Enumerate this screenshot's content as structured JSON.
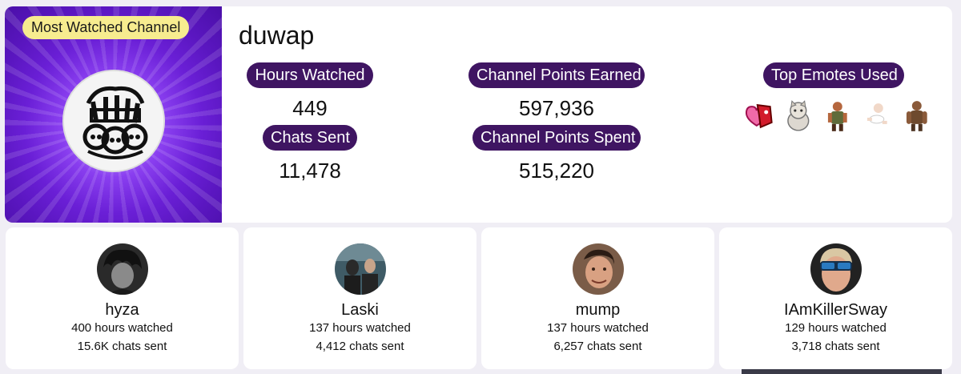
{
  "hero": {
    "badge": "Most Watched Channel",
    "avatar_icon": "channel-avatar-sketch"
  },
  "channel": {
    "name": "duwap"
  },
  "stats": {
    "hours_watched_label": "Hours Watched",
    "hours_watched_value": "449",
    "chats_sent_label": "Chats Sent",
    "chats_sent_value": "11,478",
    "points_earned_label": "Channel Points Earned",
    "points_earned_value": "597,936",
    "points_spent_label": "Channel Points Spent",
    "points_spent_value": "515,220",
    "emotes_label": "Top Emotes Used"
  },
  "emotes": [
    "heart-devil-emote",
    "cat-emote",
    "soldier-emote",
    "baby-emote",
    "gorilla-emote"
  ],
  "channels": [
    {
      "name": "hyza",
      "hours": "400 hours watched",
      "chats": "15.6K chats sent"
    },
    {
      "name": "Laski",
      "hours": "137 hours watched",
      "chats": "4,412 chats sent"
    },
    {
      "name": "mump",
      "hours": "137 hours watched",
      "chats": "6,257 chats sent"
    },
    {
      "name": "IAmKillerSway",
      "hours": "129 hours watched",
      "chats": "3,718 chats sent"
    }
  ],
  "colors": {
    "pill": "#3f1562",
    "badge": "#f7ec8f",
    "hero_purple": "#6a1fd6",
    "background": "#f0eef5"
  }
}
